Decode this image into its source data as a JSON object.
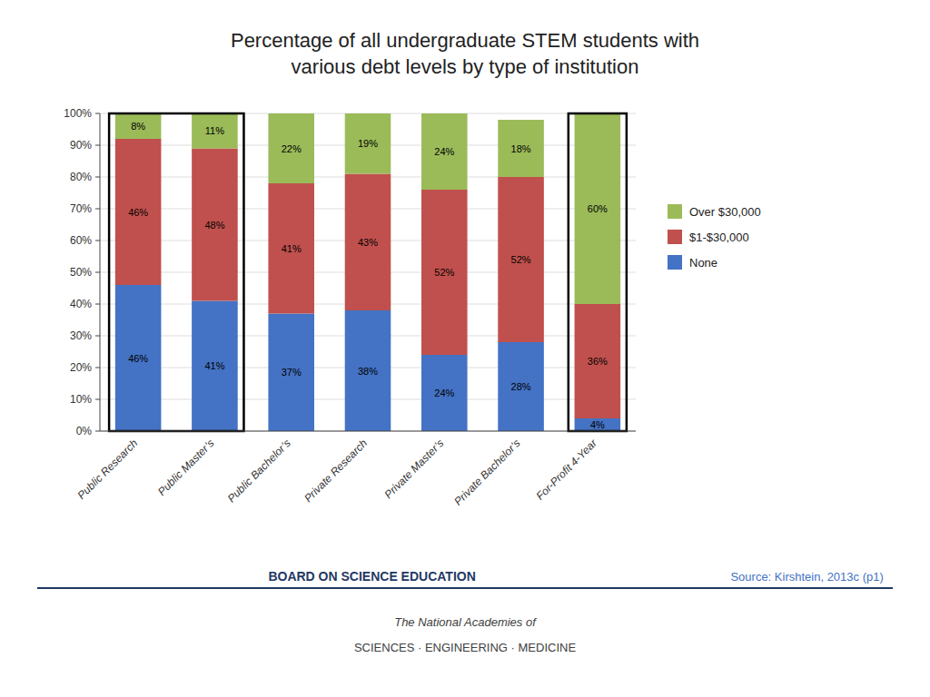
{
  "chart_data": {
    "type": "bar",
    "stacked": true,
    "title": "Percentage of all undergraduate STEM students with\nvarious debt levels by type of institution",
    "categories": [
      "Public Research",
      "Public Master’s",
      "Public Bachelor’s",
      "Private Research",
      "Private Master’s",
      "Private Bachelor’s",
      "For-Profit 4-Year"
    ],
    "series": [
      {
        "name": "None",
        "color": "#4472C4",
        "values": [
          46,
          41,
          37,
          38,
          24,
          28,
          4
        ],
        "value_labels": [
          "46%",
          "41%",
          "37%",
          "38%",
          "24%",
          "28%",
          "4%"
        ]
      },
      {
        "name": "$1-$30,000",
        "color": "#C0504D",
        "values": [
          46,
          48,
          41,
          43,
          52,
          52,
          36
        ],
        "value_labels": [
          "46%",
          "48%",
          "41%",
          "43%",
          "52%",
          "52%",
          "36%"
        ]
      },
      {
        "name": "Over $30,000",
        "color": "#9BBB59",
        "values": [
          8,
          11,
          22,
          19,
          24,
          18,
          60
        ],
        "value_labels": [
          "8%",
          "11%",
          "22%",
          "19%",
          "24%",
          "18%",
          "60%"
        ]
      }
    ],
    "ylim": [
      0,
      100
    ],
    "yticks": [
      {
        "value": 0,
        "label": "0%"
      },
      {
        "value": 10,
        "label": "10%"
      },
      {
        "value": 20,
        "label": "20%"
      },
      {
        "value": 30,
        "label": "30%"
      },
      {
        "value": 40,
        "label": "40%"
      },
      {
        "value": 50,
        "label": "50%"
      },
      {
        "value": 60,
        "label": "60%"
      },
      {
        "value": 70,
        "label": "70%"
      },
      {
        "value": 80,
        "label": "80%"
      },
      {
        "value": 90,
        "label": "90%"
      },
      {
        "value": 100,
        "label": "100%"
      }
    ],
    "grid": true,
    "data_labels": true,
    "legend": "right",
    "annotations": [
      "BOARD ON SCIENCE EDUCATION",
      "Source: Kirshtein, 2013c (p1)",
      "The National Academies of",
      "SCIENCES · ENGINEERING · MEDICINE"
    ]
  }
}
